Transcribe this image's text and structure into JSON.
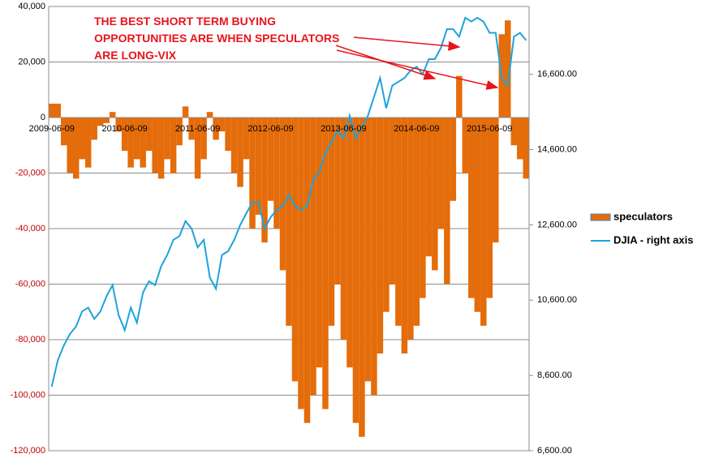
{
  "chart_data": {
    "type": "bar+line",
    "annotation_lines": [
      "THE BEST SHORT TERM BUYING",
      "OPPORTUNITIES ARE WHEN SPECULATORS",
      "ARE LONG-VIX"
    ],
    "categories": [
      "2009-06-09",
      null,
      null,
      null,
      null,
      null,
      null,
      null,
      null,
      null,
      null,
      null,
      "2010-06-09",
      null,
      null,
      null,
      null,
      null,
      null,
      null,
      null,
      null,
      null,
      null,
      "2011-06-09",
      null,
      null,
      null,
      null,
      null,
      null,
      null,
      null,
      null,
      null,
      null,
      "2012-06-09",
      null,
      null,
      null,
      null,
      null,
      null,
      null,
      null,
      null,
      null,
      null,
      "2013-06-09",
      null,
      null,
      null,
      null,
      null,
      null,
      null,
      null,
      null,
      null,
      null,
      "2014-06-09",
      null,
      null,
      null,
      null,
      null,
      null,
      null,
      null,
      null,
      null,
      null,
      "2015-06-09",
      null,
      null,
      null,
      null,
      null,
      null
    ],
    "series": [
      {
        "name": "speculators",
        "color": "#e46c0a",
        "values": [
          5000,
          5000,
          -10000,
          -20000,
          -22000,
          -15000,
          -18000,
          -8000,
          -3000,
          -2000,
          2000,
          -5000,
          -12000,
          -18000,
          -15000,
          -18000,
          -12000,
          -20000,
          -22000,
          -15000,
          -20000,
          -10000,
          4000,
          -8000,
          -22000,
          -15000,
          2000,
          -8000,
          -5000,
          -12000,
          -20000,
          -25000,
          -15000,
          -40000,
          -35000,
          -45000,
          -30000,
          -40000,
          -55000,
          -75000,
          -95000,
          -105000,
          -110000,
          -100000,
          -90000,
          -105000,
          -75000,
          -60000,
          -80000,
          -90000,
          -110000,
          -115000,
          -95000,
          -100000,
          -85000,
          -70000,
          -60000,
          -75000,
          -85000,
          -80000,
          -75000,
          -65000,
          -50000,
          -55000,
          -40000,
          -60000,
          -30000,
          15000,
          -20000,
          -65000,
          -70000,
          -75000,
          -65000,
          -45000,
          30000,
          35000,
          -10000,
          -15000,
          -22000
        ]
      },
      {
        "name": "DJIA - right axis",
        "color": "#1ea3dc",
        "axis": "y2",
        "values": [
          8300,
          9000,
          9400,
          9700,
          9900,
          10300,
          10400,
          10100,
          10300,
          10700,
          11000,
          10200,
          9800,
          10400,
          10000,
          10800,
          11100,
          11000,
          11500,
          11800,
          12200,
          12300,
          12700,
          12500,
          12000,
          12200,
          11200,
          10900,
          11800,
          11900,
          12200,
          12600,
          12900,
          13200,
          13200,
          12500,
          12800,
          13000,
          13100,
          13400,
          13100,
          13000,
          13100,
          13800,
          14000,
          14500,
          14800,
          15100,
          14900,
          15500,
          14900,
          15200,
          15500,
          16000,
          16500,
          15700,
          16300,
          16400,
          16500,
          16700,
          16800,
          16600,
          17000,
          17000,
          17300,
          17800,
          17800,
          17600,
          18100,
          18000,
          18100,
          18000,
          17700,
          17700,
          16500,
          16300,
          17600,
          17700,
          17500
        ]
      }
    ],
    "ylim": [
      -120000,
      40000
    ],
    "yticks": [
      {
        "value": -120000,
        "label": "-120,000"
      },
      {
        "value": -100000,
        "label": "-100,000"
      },
      {
        "value": -80000,
        "label": "-80,000"
      },
      {
        "value": -60000,
        "label": "-60,000"
      },
      {
        "value": -40000,
        "label": "-40,000"
      },
      {
        "value": -20000,
        "label": "-20,000"
      },
      0,
      {
        "value": 20000,
        "label": "20,000"
      },
      {
        "value": 40000,
        "label": "40,000"
      }
    ],
    "y2lim": [
      6600,
      18400
    ],
    "y2ticks": [
      {
        "value": 6600,
        "label": "6,600.00"
      },
      {
        "value": 8600,
        "label": "8,600.00"
      },
      {
        "value": 10600,
        "label": "10,600.00"
      },
      {
        "value": 12600,
        "label": "12,600.00"
      },
      {
        "value": 14600,
        "label": "14,600.00"
      },
      {
        "value": 16600,
        "label": "16,600.00"
      }
    ],
    "grid": true,
    "legend": "right"
  }
}
